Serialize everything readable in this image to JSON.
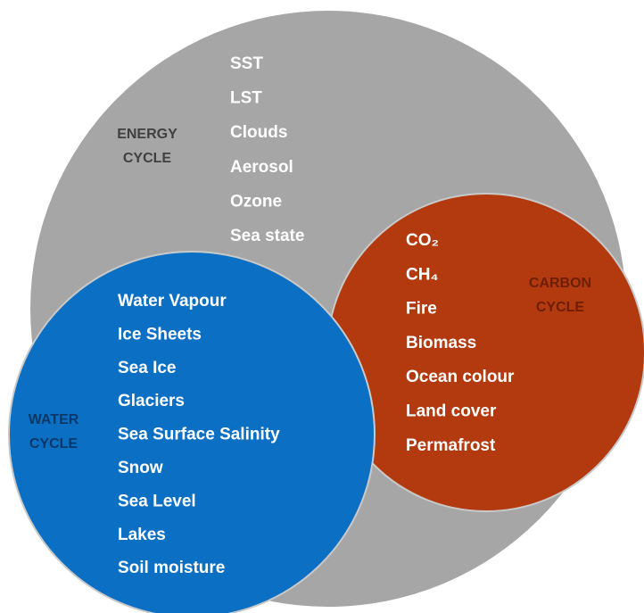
{
  "energy": {
    "label": [
      "ENERGY",
      "CYCLE"
    ],
    "items": [
      "SST",
      "LST",
      "Clouds",
      "Aerosol",
      "Ozone",
      "Sea state"
    ]
  },
  "carbon": {
    "label": [
      "CARBON",
      "CYCLE"
    ],
    "items": [
      "CO₂",
      "CH₄",
      "Fire",
      "Biomass",
      "Ocean colour",
      "Land cover",
      "Permafrost"
    ]
  },
  "water": {
    "label": [
      "WATER",
      "CYCLE"
    ],
    "items": [
      "Water Vapour",
      "Ice Sheets",
      "Sea Ice",
      "Glaciers",
      "Sea Surface Salinity",
      "Snow",
      "Sea Level",
      "Lakes",
      "Soil moisture"
    ]
  }
}
